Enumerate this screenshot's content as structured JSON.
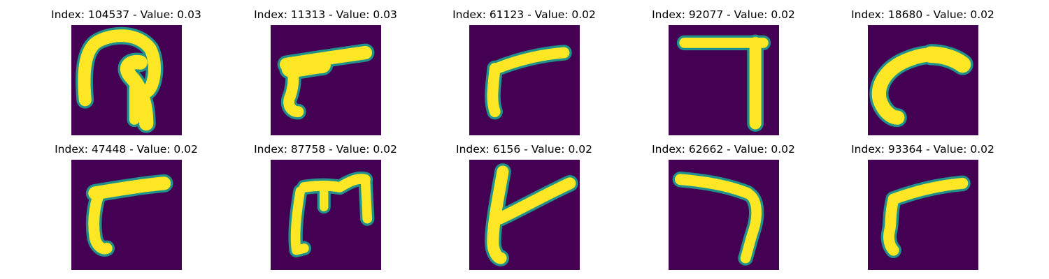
{
  "colors": {
    "background": "#440154",
    "glow": "#21918c",
    "stroke": "#fde725",
    "title_text": "#000000"
  },
  "panels": [
    {
      "title": "Index: 104537 - Value: 0.03"
    },
    {
      "title": "Index: 11313 - Value: 0.03"
    },
    {
      "title": "Index: 61123 - Value: 0.02"
    },
    {
      "title": "Index: 92077 - Value: 0.02"
    },
    {
      "title": "Index: 18680 - Value: 0.02"
    },
    {
      "title": "Index: 47448 - Value: 0.02"
    },
    {
      "title": "Index: 87758 - Value: 0.02"
    },
    {
      "title": "Index: 6156 - Value: 0.02"
    },
    {
      "title": "Index: 62662 - Value: 0.02"
    },
    {
      "title": "Index: 93364 - Value: 0.02"
    }
  ]
}
